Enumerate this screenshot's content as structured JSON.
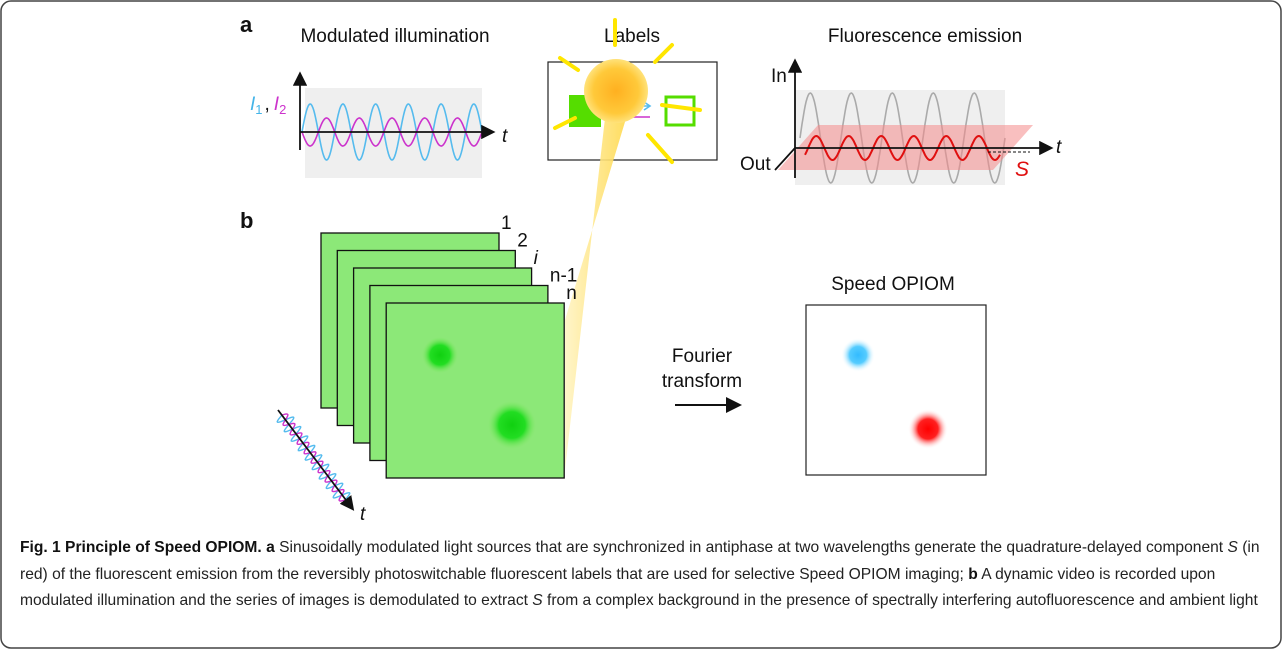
{
  "panel_a": {
    "label": "a",
    "illumination": {
      "title": "Modulated illumination",
      "i1": "I",
      "i1_sub": "1",
      "separator": ",",
      "i2": "I",
      "i2_sub": "2",
      "time": "t"
    },
    "labels": {
      "title": "Labels"
    },
    "emission": {
      "title": "Fluorescence emission",
      "in": "In",
      "out": "Out",
      "time": "t",
      "component": "S"
    }
  },
  "panel_b": {
    "label": "b",
    "frames": [
      "1",
      "2",
      "i",
      "n-1",
      "n"
    ],
    "time": "t",
    "transform": [
      "Fourier",
      "transform"
    ],
    "result": "Speed OPIOM"
  },
  "caption": {
    "title": "Fig. 1 Principle of Speed OPIOM.",
    "a_label": "a",
    "a_text_1": " Sinusoidally modulated light sources that are synchronized in antiphase at two wavelengths generate the quadrature-delayed component ",
    "a_symbol": "S",
    "a_text_2": " (in red) of the fluorescent emission from the reversibly photoswitchable fluorescent labels that are used for selective Speed OPIOM imaging; ",
    "b_label": "b",
    "b_text_1": " A dynamic video is recorded upon modulated illumination and the series of images is demodulated to extract ",
    "b_symbol": "S",
    "b_text_2": " from a complex background in the presence of spectrally interfering autofluorescence and ambient light"
  }
}
